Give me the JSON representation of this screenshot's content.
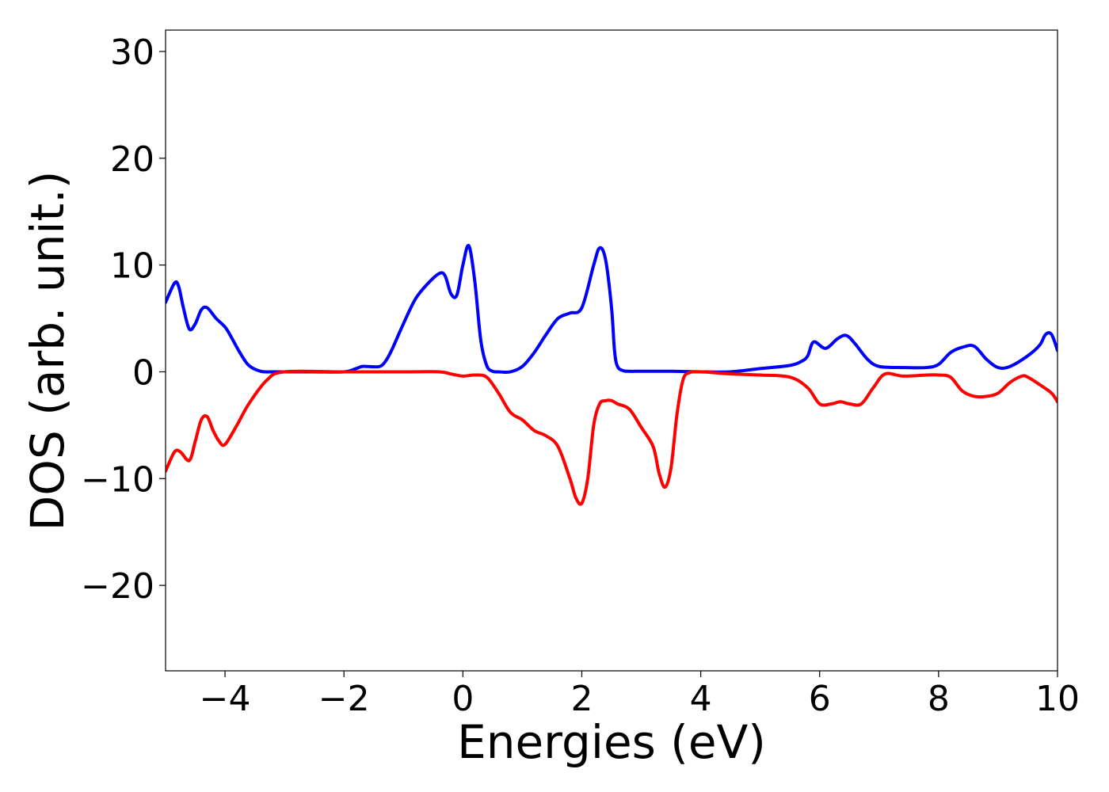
{
  "chart_data": {
    "type": "line",
    "title": "",
    "xlabel": "Energies (eV)",
    "ylabel": "DOS (arb. unit.)",
    "xlim": [
      -5,
      10
    ],
    "ylim": [
      -28,
      32
    ],
    "xticks": [
      -4,
      -2,
      0,
      2,
      4,
      6,
      8,
      10
    ],
    "yticks": [
      -20,
      -10,
      0,
      10,
      20,
      30
    ],
    "xtick_labels": [
      "−4",
      "−2",
      "0",
      "2",
      "4",
      "6",
      "8",
      "10"
    ],
    "ytick_labels": [
      "−20",
      "−10",
      "0",
      "10",
      "20",
      "30"
    ],
    "grid": false,
    "legend": "none",
    "series": [
      {
        "color": "#0000ff",
        "x": [
          -5.0,
          -4.85,
          -4.78,
          -4.7,
          -4.6,
          -4.5,
          -4.4,
          -4.3,
          -4.15,
          -4.0,
          -3.9,
          -3.75,
          -3.6,
          -3.4,
          -3.2,
          -3.0,
          -2.5,
          -2.0,
          -1.8,
          -1.7,
          -1.6,
          -1.4,
          -1.3,
          -1.2,
          -1.0,
          -0.8,
          -0.6,
          -0.4,
          -0.3,
          -0.2,
          -0.1,
          0.0,
          0.1,
          0.2,
          0.3,
          0.4,
          0.5,
          0.6,
          0.8,
          1.0,
          1.2,
          1.4,
          1.6,
          1.8,
          2.0,
          2.2,
          2.3,
          2.4,
          2.5,
          2.55,
          2.6,
          2.7,
          2.8,
          2.9,
          3.1,
          3.5,
          4.0,
          4.5,
          5.0,
          5.5,
          5.7,
          5.8,
          5.9,
          6.1,
          6.3,
          6.45,
          6.6,
          6.8,
          7.0,
          7.4,
          7.8,
          8.0,
          8.2,
          8.4,
          8.6,
          8.8,
          9.0,
          9.2,
          9.5,
          9.7,
          9.8,
          9.9,
          10.0
        ],
        "y": [
          6.5,
          8.3,
          8.0,
          6.0,
          4.0,
          4.5,
          5.8,
          6.0,
          5.0,
          4.2,
          3.3,
          1.8,
          0.6,
          0.05,
          0.0,
          0.0,
          0.0,
          0.0,
          0.3,
          0.5,
          0.5,
          0.5,
          1.0,
          2.0,
          4.5,
          6.8,
          8.2,
          9.2,
          9.0,
          7.3,
          7.2,
          10.0,
          11.8,
          8.5,
          3.0,
          0.6,
          0.05,
          0.0,
          0.0,
          0.5,
          1.8,
          3.5,
          5.0,
          5.5,
          6.0,
          10.0,
          11.6,
          10.5,
          6.0,
          2.0,
          0.5,
          0.1,
          0.05,
          0.05,
          0.05,
          0.05,
          0.0,
          0.0,
          0.3,
          0.6,
          1.0,
          1.5,
          2.8,
          2.2,
          3.1,
          3.4,
          2.6,
          1.2,
          0.5,
          0.4,
          0.4,
          0.7,
          1.8,
          2.3,
          2.4,
          1.2,
          0.4,
          0.5,
          1.5,
          2.5,
          3.5,
          3.5,
          2.0
        ]
      },
      {
        "color": "#ff0000",
        "x": [
          -5.0,
          -4.85,
          -4.75,
          -4.6,
          -4.5,
          -4.4,
          -4.3,
          -4.2,
          -4.1,
          -4.0,
          -3.8,
          -3.6,
          -3.3,
          -3.0,
          -2.0,
          -1.0,
          -0.4,
          -0.2,
          0.0,
          0.2,
          0.4,
          0.6,
          0.8,
          1.0,
          1.2,
          1.4,
          1.6,
          1.8,
          1.9,
          2.0,
          2.1,
          2.2,
          2.3,
          2.4,
          2.5,
          2.6,
          2.8,
          3.0,
          3.2,
          3.3,
          3.4,
          3.5,
          3.6,
          3.7,
          3.8,
          4.0,
          4.5,
          5.0,
          5.5,
          5.8,
          6.0,
          6.2,
          6.35,
          6.5,
          6.7,
          6.9,
          7.1,
          7.4,
          7.8,
          8.0,
          8.2,
          8.4,
          8.6,
          8.8,
          9.0,
          9.2,
          9.4,
          9.5,
          9.7,
          9.9,
          10.0
        ],
        "y": [
          -9.3,
          -7.5,
          -7.5,
          -8.3,
          -6.5,
          -4.5,
          -4.2,
          -5.5,
          -6.5,
          -6.8,
          -5.0,
          -3.0,
          -0.8,
          0.0,
          0.0,
          0.0,
          0.0,
          -0.2,
          -0.4,
          -0.3,
          -0.5,
          -2.0,
          -3.8,
          -4.5,
          -5.5,
          -6.0,
          -7.0,
          -10.0,
          -11.8,
          -12.3,
          -10.0,
          -5.0,
          -3.0,
          -2.7,
          -2.7,
          -3.0,
          -3.5,
          -5.2,
          -7.0,
          -9.5,
          -10.8,
          -9.0,
          -4.0,
          -0.8,
          -0.1,
          0.0,
          -0.2,
          -0.3,
          -0.5,
          -1.5,
          -3.0,
          -3.0,
          -2.8,
          -3.0,
          -3.0,
          -1.5,
          -0.2,
          -0.4,
          -0.3,
          -0.3,
          -0.5,
          -1.8,
          -2.3,
          -2.3,
          -2.0,
          -1.0,
          -0.4,
          -0.5,
          -1.2,
          -2.0,
          -2.8
        ]
      }
    ]
  }
}
